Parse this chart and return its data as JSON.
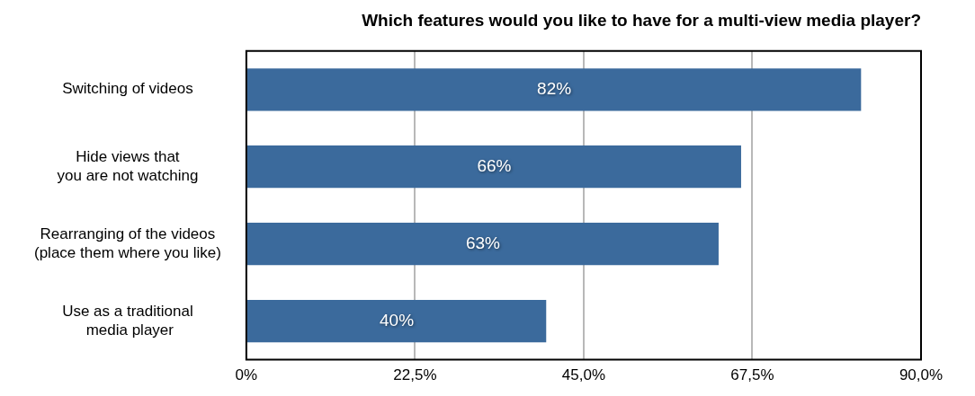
{
  "chart_data": {
    "type": "bar",
    "orientation": "horizontal",
    "title": "Which features would you like to have for a multi-view media player?",
    "categories": [
      "Switching of videos",
      "Hide views that\nyou are not watching",
      "Rearranging of the videos\n(place them where you like)",
      "Use as a traditional\n media player"
    ],
    "values": [
      82,
      66,
      63,
      40
    ],
    "value_labels": [
      "82%",
      "66%",
      "63%",
      "40%"
    ],
    "color": "#3b6a9c",
    "xlim": [
      0,
      90
    ],
    "xticks": [
      {
        "value": 0,
        "label": "0%"
      },
      {
        "value": 22.5,
        "label": "22,5%"
      },
      {
        "value": 45,
        "label": "45,0%"
      },
      {
        "value": 67.5,
        "label": "67,5%"
      },
      {
        "value": 90,
        "label": "90,0%"
      }
    ],
    "grid": "x",
    "legend": false
  }
}
